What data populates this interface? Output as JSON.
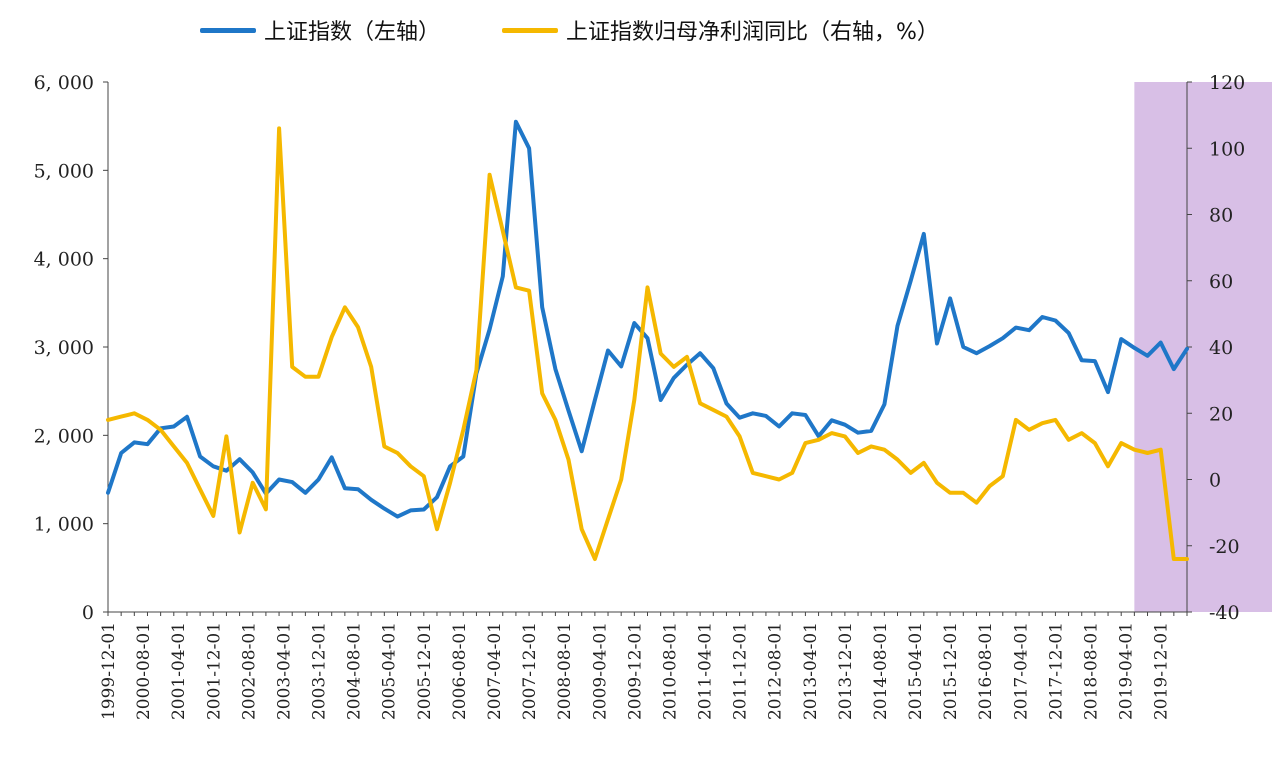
{
  "chart_data": {
    "type": "line",
    "legend_position": "top",
    "grid": false,
    "left_axis": {
      "ylim": [
        0,
        6000
      ],
      "ticks": [
        0,
        1000,
        2000,
        3000,
        4000,
        5000,
        6000
      ],
      "tick_labels": [
        "0",
        "1, 000",
        "2, 000",
        "3, 000",
        "4, 000",
        "5, 000",
        "6, 000"
      ]
    },
    "right_axis": {
      "ylim": [
        -40,
        120
      ],
      "ticks": [
        -40,
        -20,
        0,
        20,
        40,
        60,
        80,
        100,
        120
      ],
      "tick_labels": [
        "-40",
        "-20",
        "0",
        "20",
        "40",
        "60",
        "80",
        "100",
        "120"
      ]
    },
    "x_tick_labels": [
      "1999-12-01",
      "2000-08-01",
      "2001-04-01",
      "2001-12-01",
      "2002-08-01",
      "2003-04-01",
      "2003-12-01",
      "2004-08-01",
      "2005-04-01",
      "2005-12-01",
      "2006-08-01",
      "2007-04-01",
      "2007-12-01",
      "2008-08-01",
      "2009-04-01",
      "2009-12-01",
      "2010-08-01",
      "2011-04-01",
      "2011-12-01",
      "2012-08-01",
      "2013-04-01",
      "2013-12-01",
      "2014-08-01",
      "2015-04-01",
      "2015-12-01",
      "2016-08-01",
      "2017-04-01",
      "2017-12-01",
      "2018-08-01",
      "2019-04-01",
      "2019-12-01"
    ],
    "highlight_region": {
      "start_index": 78,
      "end_index": 98,
      "color": "#d8bfe6"
    },
    "series": [
      {
        "name": "上证指数（左轴）",
        "axis": "left",
        "color": "#1f77c8",
        "values": [
          1350,
          1800,
          1920,
          1900,
          2080,
          2100,
          2210,
          1760,
          1650,
          1600,
          1730,
          1580,
          1340,
          1500,
          1470,
          1350,
          1500,
          1750,
          1400,
          1390,
          1270,
          1170,
          1080,
          1150,
          1160,
          1300,
          1650,
          1760,
          2700,
          3200,
          3800,
          5550,
          5250,
          3450,
          2750,
          2280,
          1820,
          2400,
          2960,
          2780,
          3270,
          3100,
          2400,
          2650,
          2800,
          2930,
          2760,
          2360,
          2200,
          2250,
          2220,
          2100,
          2250,
          2230,
          1990,
          2170,
          2120,
          2030,
          2050,
          2350,
          3240,
          3750,
          4280,
          3040,
          3550,
          3000,
          2930,
          3010,
          3100,
          3220,
          3190,
          3340,
          3300,
          3160,
          2850,
          2840,
          2490,
          3090,
          2990,
          2900,
          3050,
          2750,
          2980
        ],
        "values_note": "quarterly, Dec 1999 – Jun 2020"
      },
      {
        "name": "上证指数归母净利润同比（右轴，%）",
        "axis": "right",
        "color": "#f5b800",
        "values": [
          18,
          19,
          20,
          18,
          15,
          10,
          5,
          -3,
          -11,
          13,
          -16,
          -1,
          -9,
          106,
          34,
          31,
          31,
          43,
          52,
          46,
          34,
          10,
          8,
          4,
          1,
          -15,
          -1,
          15,
          33,
          92,
          75,
          58,
          57,
          26,
          18,
          6,
          -15,
          -24,
          -12,
          0,
          24,
          58,
          38,
          34,
          37,
          23,
          21,
          19,
          13,
          2,
          1,
          0,
          2,
          11,
          12,
          14,
          13,
          8,
          10,
          9,
          6,
          2,
          5,
          -1,
          -4,
          -4,
          -7,
          -2,
          1,
          18,
          15,
          17,
          18,
          12,
          14,
          11,
          4,
          11,
          9,
          8,
          9,
          -24,
          -24
        ],
        "values_note": "quarterly, Dec 1999 – Jun 2020"
      }
    ]
  }
}
